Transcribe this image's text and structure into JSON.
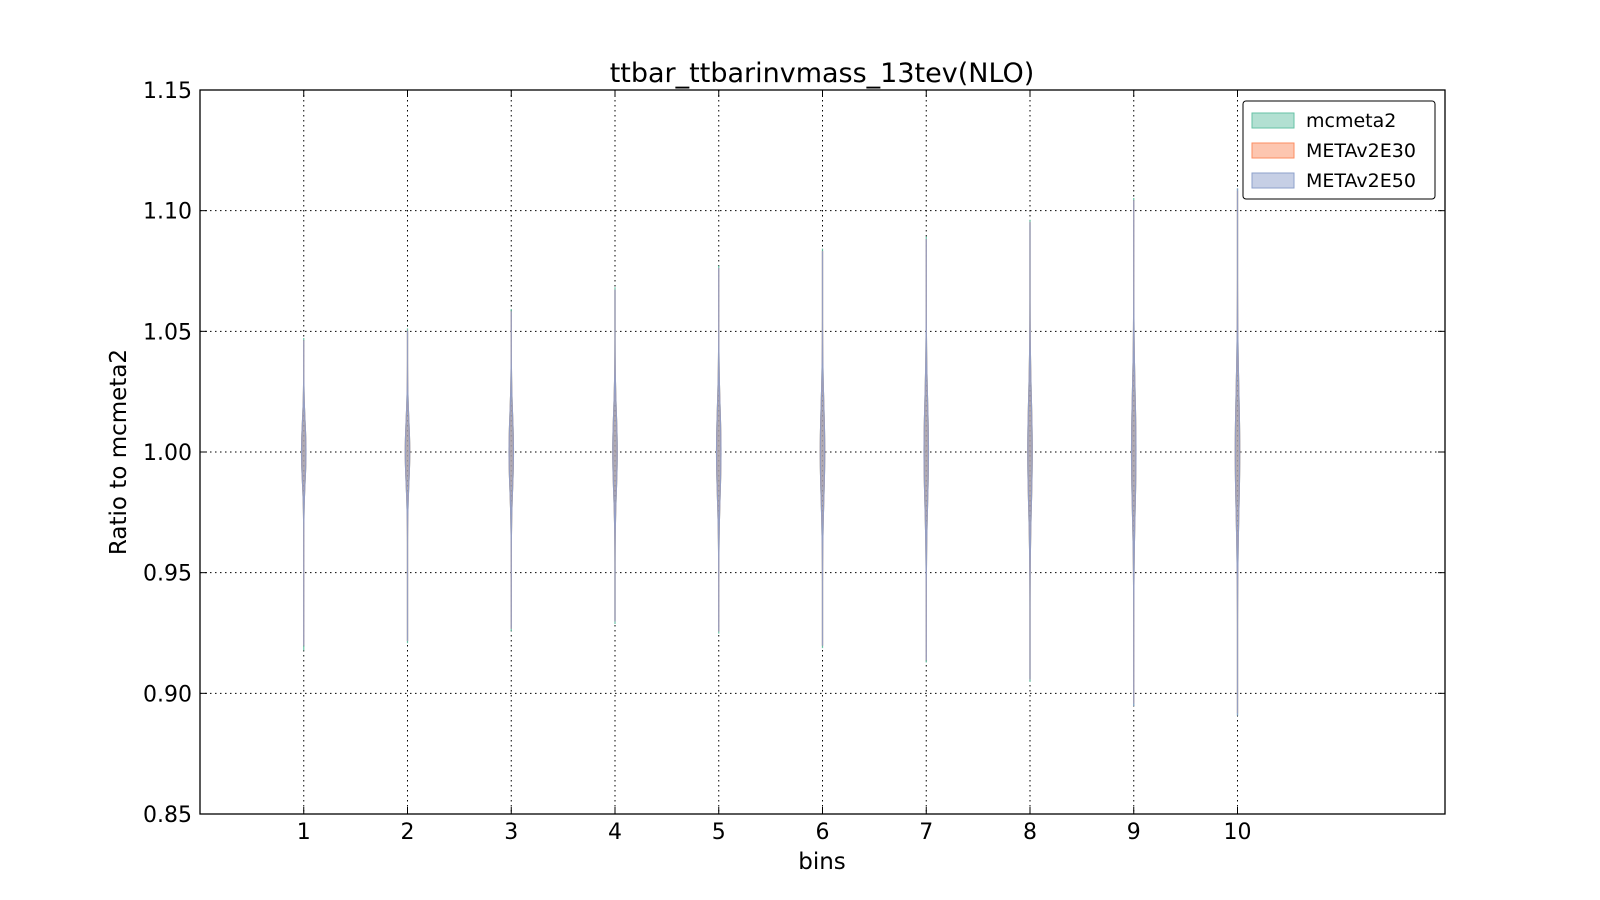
{
  "chart_data": {
    "type": "violin",
    "title": "ttbar_ttbarinvmass_13tev(NLO)",
    "xlabel": "bins",
    "ylabel": "Ratio to mcmeta2",
    "xlim": [
      0,
      12
    ],
    "ylim": [
      0.85,
      1.15
    ],
    "categories": [
      "1",
      "2",
      "3",
      "4",
      "5",
      "6",
      "7",
      "8",
      "9",
      "10"
    ],
    "yticks": [
      "0.85",
      "0.90",
      "0.95",
      "1.00",
      "1.05",
      "1.10",
      "1.15"
    ],
    "grid": true,
    "legend_position": "top-right",
    "series": [
      {
        "name": "mcmeta2",
        "fill": "#66c2a5",
        "edge": "#66c2a5",
        "min": [
          0.918,
          0.921,
          0.926,
          0.929,
          0.925,
          0.919,
          0.913,
          0.905,
          0.895,
          0.891
        ],
        "max": [
          1.047,
          1.051,
          1.059,
          1.068,
          1.077,
          1.084,
          1.089,
          1.096,
          1.105,
          1.109
        ],
        "half_width": [
          0.021,
          0.021,
          0.021,
          0.021,
          0.021,
          0.021,
          0.021,
          0.021,
          0.021,
          0.021
        ],
        "sd": [
          0.012,
          0.013,
          0.015,
          0.016,
          0.018,
          0.019,
          0.021,
          0.022,
          0.024,
          0.025
        ]
      },
      {
        "name": "METAv2E30",
        "fill": "#fc8d62",
        "edge": "#fc8d62",
        "min": [
          0.92,
          0.922,
          0.927,
          0.93,
          0.926,
          0.92,
          0.914,
          0.906,
          0.896,
          0.892
        ],
        "max": [
          1.046,
          1.05,
          1.058,
          1.067,
          1.076,
          1.083,
          1.088,
          1.095,
          1.104,
          1.108
        ],
        "half_width": [
          0.021,
          0.021,
          0.021,
          0.021,
          0.021,
          0.021,
          0.021,
          0.021,
          0.021,
          0.021
        ],
        "sd": [
          0.012,
          0.013,
          0.015,
          0.016,
          0.018,
          0.019,
          0.021,
          0.022,
          0.024,
          0.025
        ]
      },
      {
        "name": "METAv2E50",
        "fill": "#8da0cb",
        "edge": "#8da0cb",
        "min": [
          0.92,
          0.922,
          0.927,
          0.93,
          0.926,
          0.92,
          0.914,
          0.906,
          0.895,
          0.891
        ],
        "max": [
          1.046,
          1.05,
          1.058,
          1.067,
          1.076,
          1.083,
          1.088,
          1.095,
          1.104,
          1.109
        ],
        "half_width": [
          0.021,
          0.021,
          0.021,
          0.021,
          0.021,
          0.021,
          0.021,
          0.021,
          0.021,
          0.021
        ],
        "sd": [
          0.012,
          0.013,
          0.015,
          0.016,
          0.018,
          0.019,
          0.021,
          0.022,
          0.024,
          0.025
        ]
      }
    ]
  }
}
